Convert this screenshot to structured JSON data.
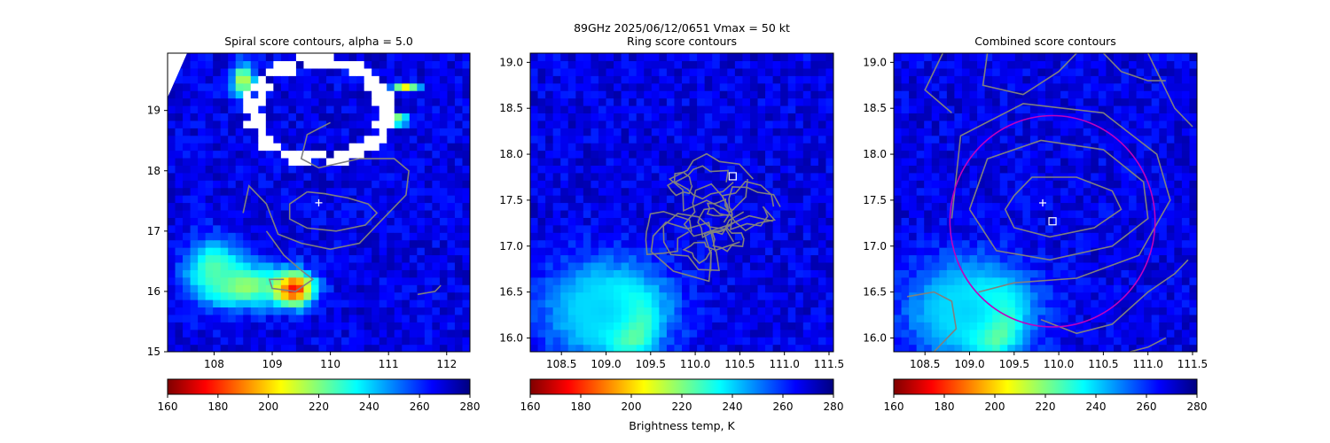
{
  "figure": {
    "suptitle_line1": "89GHz  2025/06/12/0651    Vmax = 50 kt",
    "colorbar_label": "Brightness temp, K"
  },
  "colormap": {
    "name": "jet_r",
    "vmin": 160,
    "vmax": 280,
    "stops": [
      "#7f0000",
      "#ff0000",
      "#ff7f00",
      "#ffff00",
      "#7fff7f",
      "#00ffff",
      "#007fff",
      "#0000ff",
      "#00007f"
    ],
    "colorbar_ticks": [
      "160",
      "180",
      "200",
      "220",
      "240",
      "260",
      "280"
    ]
  },
  "colors": {
    "contour": "#808080",
    "circle": "#c000c0",
    "marker": "#ffffff",
    "missing": "#ffffff"
  },
  "chart_data": [
    {
      "type": "heatmap",
      "panel": "spiral",
      "title": "Spiral score contours, alpha =  5.0",
      "xlim": [
        107.2,
        112.4
      ],
      "ylim": [
        15.0,
        19.95
      ],
      "xticks": [
        "108",
        "109",
        "110",
        "111",
        "112"
      ],
      "yticks": [
        "15",
        "16",
        "17",
        "18",
        "19"
      ],
      "background_tb": 268,
      "cold_cores": [
        {
          "x": 109.35,
          "y": 16.05,
          "rx": 0.45,
          "ry": 0.35,
          "tb": 165
        },
        {
          "x": 108.5,
          "y": 16.1,
          "rx": 0.9,
          "ry": 0.45,
          "tb": 215
        },
        {
          "x": 108.0,
          "y": 16.4,
          "rx": 0.6,
          "ry": 0.6,
          "tb": 225
        },
        {
          "x": 108.5,
          "y": 19.5,
          "rx": 0.25,
          "ry": 0.35,
          "tb": 210
        },
        {
          "x": 111.15,
          "y": 18.85,
          "rx": 0.25,
          "ry": 0.1,
          "tb": 200
        },
        {
          "x": 111.3,
          "y": 19.4,
          "rx": 0.3,
          "ry": 0.08,
          "tb": 205
        }
      ],
      "missing_ring": {
        "x": 109.8,
        "y": 19.0,
        "rx": 1.2,
        "ry": 0.85
      },
      "center_marker": {
        "x": 109.8,
        "y": 17.47,
        "symbol": "+"
      },
      "contours": [
        [
          [
            109.6,
            17.65
          ],
          [
            109.9,
            17.62
          ],
          [
            110.3,
            17.55
          ],
          [
            110.65,
            17.45
          ],
          [
            110.8,
            17.3
          ],
          [
            110.6,
            17.1
          ],
          [
            110.1,
            17.0
          ],
          [
            109.6,
            17.05
          ],
          [
            109.3,
            17.2
          ],
          [
            109.3,
            17.45
          ],
          [
            109.6,
            17.65
          ]
        ],
        [
          [
            108.5,
            17.3
          ],
          [
            108.6,
            17.75
          ],
          [
            108.9,
            17.45
          ],
          [
            109.1,
            16.95
          ],
          [
            109.5,
            16.8
          ],
          [
            110.0,
            16.7
          ],
          [
            110.5,
            16.8
          ],
          [
            111.0,
            17.3
          ],
          [
            111.3,
            17.6
          ],
          [
            111.35,
            18.0
          ],
          [
            111.1,
            18.2
          ],
          [
            110.5,
            18.2
          ],
          [
            109.8,
            18.05
          ],
          [
            109.5,
            18.2
          ],
          [
            109.6,
            18.6
          ],
          [
            110.0,
            18.8
          ]
        ],
        [
          [
            108.9,
            17.0
          ],
          [
            109.2,
            16.6
          ],
          [
            109.5,
            16.35
          ],
          [
            109.7,
            16.2
          ],
          [
            109.4,
            16.0
          ],
          [
            109.0,
            16.05
          ],
          [
            108.95,
            16.2
          ],
          [
            109.2,
            16.2
          ]
        ],
        [
          [
            111.5,
            15.95
          ],
          [
            111.8,
            16.0
          ],
          [
            111.9,
            16.1
          ]
        ]
      ]
    },
    {
      "type": "heatmap",
      "panel": "ring",
      "title": "Ring score contours",
      "xlim": [
        108.15,
        111.55
      ],
      "ylim": [
        15.85,
        19.1
      ],
      "xticks": [
        "108.5",
        "109.0",
        "109.5",
        "110.0",
        "110.5",
        "111.0",
        "111.5"
      ],
      "yticks": [
        "16.0",
        "16.5",
        "17.0",
        "17.5",
        "18.0",
        "18.5",
        "19.0"
      ],
      "background_tb": 268,
      "cold_cores": [
        {
          "x": 109.25,
          "y": 16.15,
          "rx": 0.3,
          "ry": 0.35,
          "tb": 165
        },
        {
          "x": 109.1,
          "y": 16.3,
          "rx": 0.65,
          "ry": 0.5,
          "tb": 212
        },
        {
          "x": 108.95,
          "y": 16.3,
          "rx": 0.85,
          "ry": 0.7,
          "tb": 240
        }
      ],
      "center_marker": {
        "x": 110.42,
        "y": 17.76,
        "symbol": "square"
      },
      "contour_blob": {
        "x": 110.1,
        "y": 17.3,
        "rx": 0.85,
        "ry": 0.72
      }
    },
    {
      "type": "heatmap",
      "panel": "combined",
      "title": "Combined score contours",
      "xlim": [
        108.15,
        111.55
      ],
      "ylim": [
        15.85,
        19.1
      ],
      "xticks": [
        "108.5",
        "109.0",
        "109.5",
        "110.0",
        "110.5",
        "111.0",
        "111.5"
      ],
      "yticks": [
        "16.0",
        "16.5",
        "17.0",
        "17.5",
        "18.0",
        "18.5",
        "19.0"
      ],
      "background_tb": 268,
      "cold_cores": [
        {
          "x": 109.25,
          "y": 16.15,
          "rx": 0.3,
          "ry": 0.35,
          "tb": 165
        },
        {
          "x": 109.1,
          "y": 16.3,
          "rx": 0.65,
          "ry": 0.5,
          "tb": 212
        },
        {
          "x": 108.95,
          "y": 16.3,
          "rx": 0.85,
          "ry": 0.7,
          "tb": 240
        }
      ],
      "center_marker": {
        "x": 109.82,
        "y": 17.47,
        "symbol": "+"
      },
      "square_marker": {
        "x": 109.93,
        "y": 17.27,
        "symbol": "square"
      },
      "circle": {
        "x": 109.93,
        "y": 17.27,
        "r": 1.15
      },
      "contours": [
        [
          [
            109.5,
            17.55
          ],
          [
            109.7,
            17.75
          ],
          [
            110.2,
            17.75
          ],
          [
            110.6,
            17.6
          ],
          [
            110.7,
            17.4
          ],
          [
            110.4,
            17.2
          ],
          [
            109.9,
            17.1
          ],
          [
            109.5,
            17.2
          ],
          [
            109.4,
            17.4
          ],
          [
            109.5,
            17.55
          ]
        ],
        [
          [
            109.0,
            17.4
          ],
          [
            109.2,
            17.95
          ],
          [
            109.8,
            18.15
          ],
          [
            110.5,
            18.05
          ],
          [
            110.95,
            17.7
          ],
          [
            111.0,
            17.3
          ],
          [
            110.6,
            17.0
          ],
          [
            109.9,
            16.85
          ],
          [
            109.3,
            16.95
          ],
          [
            109.0,
            17.4
          ]
        ],
        [
          [
            108.8,
            17.3
          ],
          [
            108.9,
            18.2
          ],
          [
            109.6,
            18.55
          ],
          [
            110.5,
            18.45
          ],
          [
            111.1,
            18.0
          ],
          [
            111.25,
            17.5
          ],
          [
            110.9,
            16.9
          ],
          [
            110.2,
            16.65
          ],
          [
            109.5,
            16.6
          ],
          [
            109.1,
            16.5
          ]
        ],
        [
          [
            108.7,
            19.1
          ],
          [
            108.5,
            18.7
          ],
          [
            108.8,
            18.45
          ]
        ],
        [
          [
            109.2,
            19.1
          ],
          [
            109.15,
            18.75
          ],
          [
            109.6,
            18.65
          ],
          [
            110.0,
            18.9
          ],
          [
            110.2,
            19.1
          ]
        ],
        [
          [
            110.5,
            19.1
          ],
          [
            110.7,
            18.9
          ],
          [
            111.0,
            18.8
          ],
          [
            111.2,
            18.8
          ]
        ],
        [
          [
            111.0,
            19.1
          ],
          [
            111.3,
            18.5
          ],
          [
            111.5,
            18.3
          ]
        ],
        [
          [
            108.3,
            16.45
          ],
          [
            108.6,
            16.5
          ],
          [
            108.8,
            16.4
          ],
          [
            108.85,
            16.1
          ],
          [
            108.6,
            15.85
          ]
        ],
        [
          [
            109.8,
            16.2
          ],
          [
            110.2,
            16.05
          ],
          [
            110.6,
            16.15
          ],
          [
            111.0,
            16.5
          ],
          [
            111.3,
            16.7
          ],
          [
            111.45,
            16.85
          ]
        ],
        [
          [
            110.8,
            15.85
          ],
          [
            111.0,
            15.9
          ],
          [
            111.2,
            16.0
          ]
        ]
      ]
    }
  ]
}
